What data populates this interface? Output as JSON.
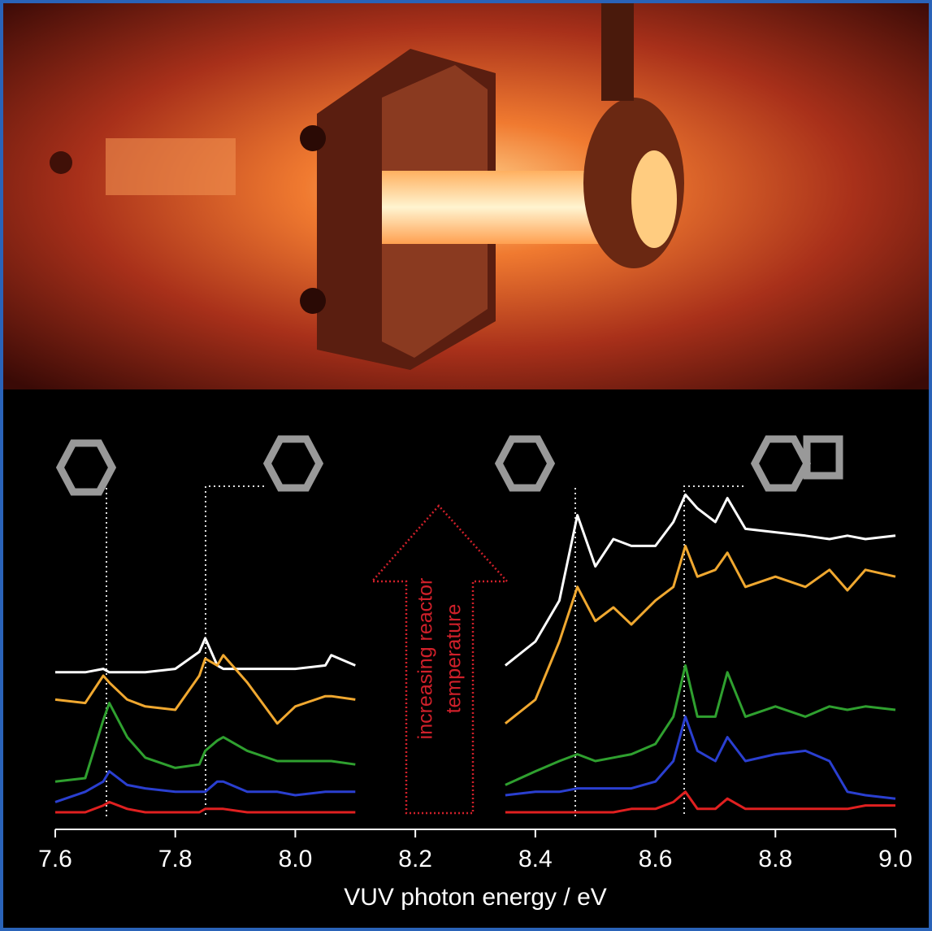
{
  "chart_data": {
    "type": "line",
    "xlabel": "VUV photon energy / eV",
    "annotations": [
      "increasing reactor",
      "temperature"
    ],
    "x": [
      7.6,
      7.65,
      7.68,
      7.69,
      7.72,
      7.75,
      7.8,
      7.84,
      7.85,
      7.87,
      7.88,
      7.92,
      7.97,
      8.0,
      8.05,
      8.06,
      8.1,
      8.2,
      8.35,
      8.4,
      8.44,
      8.47,
      8.5,
      8.53,
      8.56,
      8.6,
      8.63,
      8.65,
      8.67,
      8.7,
      8.72,
      8.75,
      8.8,
      8.85,
      8.89,
      8.92,
      8.95,
      9.0
    ],
    "series": [
      {
        "color": "#ffffff",
        "values": [
          46,
          46,
          47,
          46,
          46,
          46,
          47,
          52,
          56,
          48,
          47,
          47,
          47,
          47,
          48,
          51,
          48,
          null,
          48,
          55,
          67,
          92,
          77,
          85,
          83,
          83,
          90,
          98,
          94,
          90,
          97,
          88,
          87,
          86,
          85,
          86,
          85,
          86
        ]
      },
      {
        "color": "#f0a830",
        "values": [
          38,
          37,
          45,
          43,
          38,
          36,
          35,
          45,
          50,
          48,
          51,
          43,
          31,
          36,
          39,
          39,
          38,
          null,
          31,
          38,
          55,
          71,
          61,
          65,
          60,
          67,
          71,
          83,
          74,
          76,
          81,
          71,
          74,
          71,
          76,
          70,
          76,
          74
        ]
      },
      {
        "color": "#2fa02f",
        "values": [
          14,
          15,
          32,
          37,
          27,
          21,
          18,
          19,
          23,
          26,
          27,
          23,
          20,
          20,
          20,
          20,
          19,
          null,
          13,
          17,
          20,
          22,
          20,
          21,
          22,
          25,
          33,
          48,
          33,
          33,
          46,
          33,
          36,
          33,
          36,
          35,
          36,
          35
        ]
      },
      {
        "color": "#2a3fd0",
        "values": [
          8,
          11,
          14,
          17,
          13,
          12,
          11,
          11,
          11,
          14,
          14,
          11,
          11,
          10,
          11,
          11,
          11,
          null,
          10,
          11,
          11,
          12,
          12,
          12,
          12,
          14,
          20,
          33,
          23,
          20,
          27,
          20,
          22,
          23,
          20,
          11,
          10,
          9
        ]
      },
      {
        "color": "#e02020",
        "values": [
          5,
          5,
          7,
          8,
          6,
          5,
          5,
          5,
          6,
          6,
          6,
          5,
          5,
          5,
          5,
          5,
          5,
          null,
          5,
          5,
          5,
          5,
          5,
          5,
          6,
          6,
          8,
          11,
          6,
          6,
          9,
          6,
          6,
          6,
          6,
          6,
          7,
          7
        ]
      }
    ],
    "xlim": [
      7.6,
      9.0
    ],
    "ylim": [
      0,
      100
    ],
    "xticks": [
      7.6,
      7.8,
      {
        "value": 8,
        "label": "8.0"
      },
      8.2,
      8.4,
      8.6,
      8.8,
      {
        "value": 9,
        "label": "9.0"
      }
    ]
  }
}
